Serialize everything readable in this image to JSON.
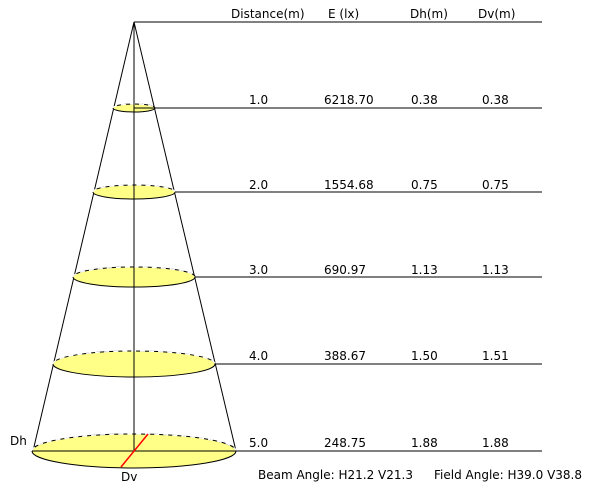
{
  "headers": {
    "distance": "Distance(m)",
    "illuminance": "E (lx)",
    "dh": "Dh(m)",
    "dv": "Dv(m)"
  },
  "rows": [
    {
      "distance": "1.0",
      "illuminance": "6218.70",
      "dh": "0.38",
      "dv": "0.38"
    },
    {
      "distance": "2.0",
      "illuminance": "1554.68",
      "dh": "0.75",
      "dv": "0.75"
    },
    {
      "distance": "3.0",
      "illuminance": "690.97",
      "dh": "1.13",
      "dv": "1.13"
    },
    {
      "distance": "4.0",
      "illuminance": "388.67",
      "dh": "1.50",
      "dv": "1.51"
    },
    {
      "distance": "5.0",
      "illuminance": "248.75",
      "dh": "1.88",
      "dv": "1.88"
    }
  ],
  "labels": {
    "dh": "Dh",
    "dv": "Dv"
  },
  "footer": {
    "beam_angle": "Beam Angle: H21.2 V21.3",
    "field_angle": "Field Angle: H39.0 V38.8"
  },
  "colors": {
    "ellipse_fill": "#ffff88",
    "dv_line": "#ff0000",
    "line": "#000000"
  }
}
